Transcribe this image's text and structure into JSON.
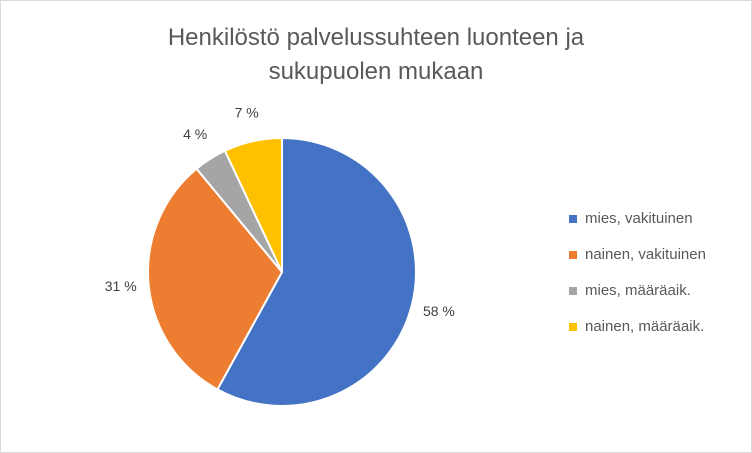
{
  "chart_data": {
    "type": "pie",
    "title": "Henkilöstö palvelussuhteen luonteen ja sukupuolen mukaan",
    "categories": [
      "mies, vakituinen",
      "nainen, vakituinen",
      "mies, määräaik.",
      "nainen, määräaik."
    ],
    "values": [
      58,
      31,
      4,
      7
    ],
    "value_labels": [
      "58 %",
      "31 %",
      "4 %",
      "7 %"
    ],
    "colors": [
      "#4472c4",
      "#ed7d31",
      "#a5a5a5",
      "#ffc000"
    ],
    "legend": "right"
  }
}
